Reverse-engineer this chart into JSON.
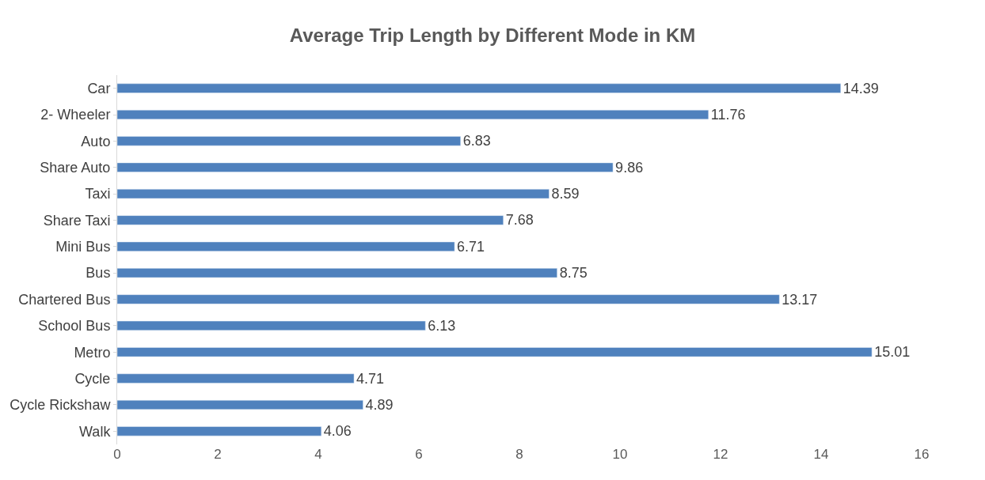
{
  "chart_data": {
    "type": "bar",
    "orientation": "horizontal",
    "title": "Average Trip Length by Different Mode in KM",
    "categories": [
      "Car",
      "2- Wheeler",
      "Auto",
      "Share Auto",
      "Taxi",
      "Share Taxi",
      "Mini Bus",
      "Bus",
      "Chartered Bus",
      "School Bus",
      "Metro",
      "Cycle",
      "Cycle Rickshaw",
      "Walk"
    ],
    "values": [
      14.39,
      11.76,
      6.83,
      9.86,
      8.59,
      7.68,
      6.71,
      8.75,
      13.17,
      6.13,
      15.01,
      4.71,
      4.89,
      4.06
    ],
    "color": "#4f81bd",
    "xlim": [
      0,
      16
    ],
    "xticks": [
      0,
      2,
      4,
      6,
      8,
      10,
      12,
      14,
      16
    ],
    "data_labels": true
  }
}
